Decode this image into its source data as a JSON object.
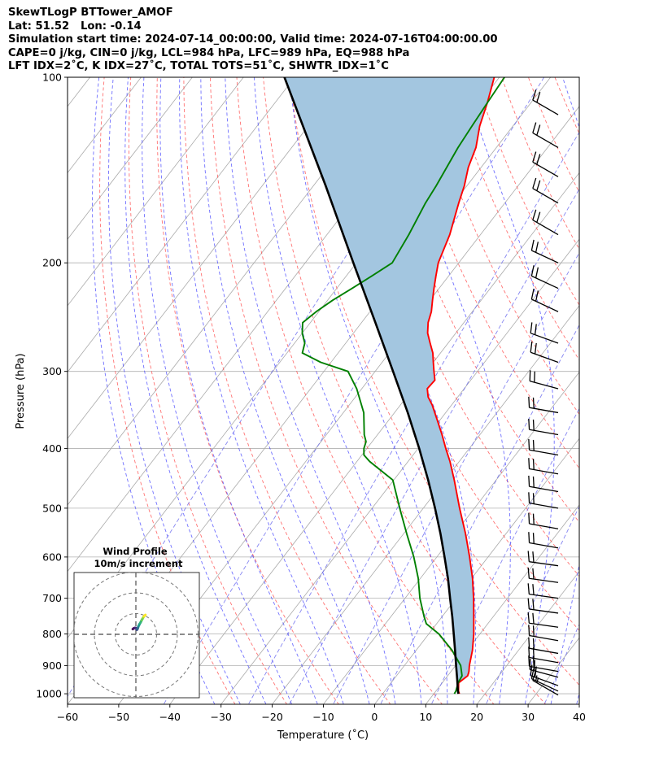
{
  "header": {
    "lines": [
      "SkewTLogP BTTower_AMOF",
      "Lat: 51.52   Lon: -0.14",
      "Simulation start time: 2024-07-14_00:00:00, Valid time: 2024-07-16T04:00:00.00",
      "CAPE=0 j/kg, CIN=0 j/kg, LCL=984 hPa, LFC=989 hPa, EQ=988 hPa",
      "LFT IDX=2˚C, K IDX=27˚C, TOTAL TOTS=51˚C, SHWTR_IDX=1˚C"
    ]
  },
  "chart_data": {
    "type": "line",
    "skew_t_log_p": true,
    "xlabel": "Temperature (˚C)",
    "ylabel": "Pressure (hPa)",
    "xlim": [
      -60,
      40
    ],
    "ylim": [
      1040,
      100
    ],
    "y_scale": "log",
    "grid": true,
    "x_ticks": [
      -60,
      -50,
      -40,
      -30,
      -20,
      -10,
      0,
      10,
      20,
      30,
      40
    ],
    "y_ticks": [
      100,
      200,
      300,
      400,
      500,
      600,
      700,
      800,
      900,
      1000
    ],
    "colors": {
      "temperature": "#ff0000",
      "dewpoint": "#008000",
      "parcel": "#000000",
      "cape_fill": "#a3c6e0",
      "dry_adiabat": "#ff4444",
      "moist_adiabat": "#3333ff",
      "mixing_ratio": "#6666ee",
      "isotherm": "#aaaaaa"
    },
    "series": [
      {
        "key": "temperature",
        "p": [
          1000,
          990,
          960,
          935,
          920,
          900,
          850,
          800,
          750,
          700,
          650,
          600,
          550,
          500,
          450,
          420,
          400,
          380,
          360,
          340,
          330,
          320,
          310,
          300,
          290,
          280,
          270,
          260,
          250,
          240,
          230,
          220,
          210,
          200,
          180,
          160,
          150,
          140,
          130,
          120,
          110,
          100
        ],
        "t": [
          15.0,
          14.4,
          13.2,
          13.9,
          13.5,
          12.7,
          11.0,
          8.8,
          6.2,
          3.4,
          0.2,
          -3.6,
          -7.9,
          -12.9,
          -18.2,
          -21.8,
          -24.6,
          -27.4,
          -30.5,
          -33.8,
          -35.8,
          -37.2,
          -37.0,
          -38.5,
          -40.0,
          -41.5,
          -43.5,
          -45.5,
          -47.0,
          -48.0,
          -49.5,
          -51.0,
          -52.5,
          -54.0,
          -56.0,
          -59.0,
          -60.5,
          -62.5,
          -64.0,
          -66.5,
          -68.5,
          -71.0
        ]
      },
      {
        "key": "dewpoint",
        "p": [
          1000,
          990,
          960,
          935,
          900,
          850,
          800,
          770,
          750,
          700,
          650,
          600,
          550,
          500,
          450,
          420,
          410,
          400,
          390,
          380,
          350,
          320,
          300,
          290,
          280,
          270,
          260,
          250,
          240,
          230,
          220,
          210,
          200,
          180,
          160,
          150,
          130,
          120,
          110,
          100
        ],
        "t": [
          14.0,
          13.9,
          13.1,
          12.8,
          11.0,
          7.0,
          2.0,
          -2.0,
          -3.5,
          -7.1,
          -10.4,
          -14.5,
          -19.4,
          -24.6,
          -30.2,
          -37.5,
          -39.6,
          -40.6,
          -41.2,
          -42.6,
          -46.0,
          -51.0,
          -55.3,
          -62.0,
          -67.0,
          -68.0,
          -70.0,
          -71.5,
          -70.5,
          -69.0,
          -67.0,
          -65.0,
          -63.0,
          -64.0,
          -65.5,
          -66.0,
          -67.5,
          -68.0,
          -68.5,
          -69.0
        ]
      },
      {
        "key": "parcel",
        "p": [
          1000,
          990,
          950,
          900,
          850,
          800,
          750,
          700,
          650,
          600,
          550,
          500,
          450,
          400,
          350,
          300,
          250,
          200,
          150,
          100
        ],
        "t": [
          14.8,
          14.3,
          12.5,
          10.1,
          7.6,
          4.9,
          2.0,
          -1.2,
          -4.6,
          -8.5,
          -12.8,
          -17.7,
          -23.3,
          -29.8,
          -37.4,
          -46.5,
          -57.3,
          -70.6,
          -87.6,
          -112.0
        ]
      }
    ],
    "wind_barbs": {
      "p": [
        1005,
        990,
        970,
        940,
        920,
        890,
        860,
        820,
        780,
        740,
        700,
        660,
        620,
        580,
        540,
        500,
        470,
        440,
        410,
        380,
        350,
        320,
        290,
        270,
        240,
        220,
        200,
        180,
        160,
        145,
        130,
        115
      ],
      "speed_kt": [
        15,
        15,
        20,
        20,
        20,
        20,
        20,
        20,
        20,
        20,
        20,
        20,
        20,
        20,
        20,
        20,
        20,
        20,
        20,
        20,
        20,
        20,
        20,
        20,
        20,
        20,
        20,
        20,
        20,
        20,
        20,
        20
      ],
      "direction_deg": [
        300,
        295,
        290,
        285,
        280,
        280,
        280,
        280,
        278,
        278,
        278,
        278,
        278,
        280,
        280,
        280,
        280,
        280,
        280,
        280,
        280,
        285,
        290,
        290,
        295,
        295,
        295,
        300,
        300,
        300,
        300,
        300
      ]
    },
    "inset": {
      "title": "Wind Profile",
      "subtitle": "10m/s increment",
      "u": [
        -1.5,
        -1.0,
        -0.5,
        0.0,
        0.3,
        0.5,
        0.8,
        1.0,
        1.2,
        1.5,
        1.8,
        2.2,
        2.5,
        2.8,
        3.2,
        3.6,
        4.0,
        4.6
      ],
      "v": [
        2.5,
        2.9,
        3.1,
        3.0,
        2.6,
        2.2,
        2.6,
        3.2,
        3.8,
        4.4,
        5.0,
        5.6,
        6.2,
        6.8,
        7.5,
        8.2,
        8.8,
        9.4
      ]
    }
  }
}
